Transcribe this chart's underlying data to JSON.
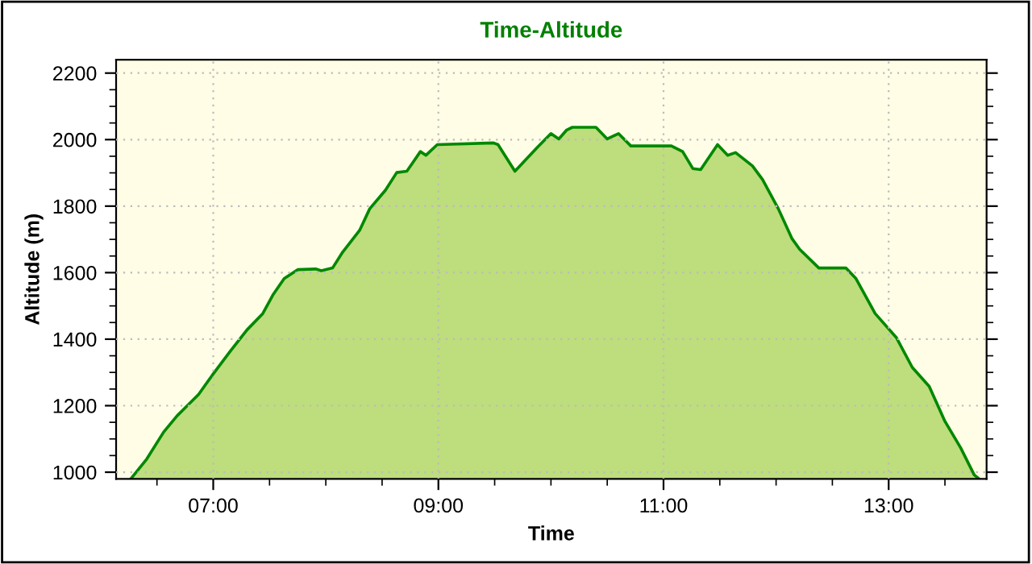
{
  "chart_data": {
    "type": "area",
    "title": "Time-Altitude",
    "xlabel": "Time",
    "ylabel": "Altitude (m)",
    "xlim": [
      6.137,
      13.87
    ],
    "ylim": [
      980,
      2240
    ],
    "xticks": [
      {
        "value": 6.5,
        "label": null
      },
      {
        "value": 7,
        "label": "07:00"
      },
      {
        "value": 7.5,
        "label": null
      },
      {
        "value": 8,
        "label": null
      },
      {
        "value": 8.5,
        "label": null
      },
      {
        "value": 9,
        "label": "09:00"
      },
      {
        "value": 9.5,
        "label": null
      },
      {
        "value": 10,
        "label": null
      },
      {
        "value": 10.5,
        "label": null
      },
      {
        "value": 11,
        "label": "11:00"
      },
      {
        "value": 11.5,
        "label": null
      },
      {
        "value": 12,
        "label": null
      },
      {
        "value": 12.5,
        "label": null
      },
      {
        "value": 13,
        "label": "13:00"
      },
      {
        "value": 13.5,
        "label": null
      }
    ],
    "yticks": [
      1000,
      {
        "value": 1050,
        "label": null
      },
      {
        "value": 1100,
        "label": null
      },
      {
        "value": 1150,
        "label": null
      },
      1200,
      {
        "value": 1250,
        "label": null
      },
      {
        "value": 1300,
        "label": null
      },
      {
        "value": 1350,
        "label": null
      },
      1400,
      {
        "value": 1450,
        "label": null
      },
      {
        "value": 1500,
        "label": null
      },
      {
        "value": 1550,
        "label": null
      },
      1600,
      {
        "value": 1650,
        "label": null
      },
      {
        "value": 1700,
        "label": null
      },
      {
        "value": 1750,
        "label": null
      },
      1800,
      {
        "value": 1850,
        "label": null
      },
      {
        "value": 1900,
        "label": null
      },
      {
        "value": 1950,
        "label": null
      },
      2000,
      {
        "value": 2050,
        "label": null
      },
      {
        "value": 2100,
        "label": null
      },
      {
        "value": 2150,
        "label": null
      },
      2200
    ],
    "grid": true,
    "legend": false,
    "marker": "none",
    "line_style": "solid",
    "series": [
      {
        "color": "#008800",
        "x": [
          6.27,
          6.41,
          6.56,
          6.68,
          6.87,
          6.99,
          7.15,
          7.3,
          7.44,
          7.53,
          7.63,
          7.75,
          7.91,
          7.96,
          8.06,
          8.15,
          8.3,
          8.39,
          8.53,
          8.63,
          8.72,
          8.84,
          8.89,
          8.99,
          9.49,
          9.53,
          9.68,
          9.88,
          10.0,
          10.07,
          10.14,
          10.19,
          10.4,
          10.5,
          10.6,
          10.71,
          11.07,
          11.17,
          11.26,
          11.33,
          11.48,
          11.57,
          11.64,
          11.79,
          11.88,
          12.02,
          12.14,
          12.21,
          12.38,
          12.62,
          12.71,
          12.88,
          13.07,
          13.21,
          13.36,
          13.5,
          13.64,
          13.76,
          13.8
        ],
        "values": [
          981,
          1040,
          1121,
          1170,
          1234,
          1291,
          1363,
          1428,
          1477,
          1533,
          1582,
          1609,
          1611,
          1606,
          1614,
          1662,
          1727,
          1792,
          1848,
          1901,
          1905,
          1964,
          1953,
          1985,
          1990,
          1985,
          1905,
          1977,
          2018,
          2002,
          2029,
          2037,
          2037,
          2002,
          2018,
          1981,
          1981,
          1964,
          1913,
          1910,
          1985,
          1953,
          1961,
          1921,
          1880,
          1792,
          1703,
          1670,
          1614,
          1614,
          1582,
          1477,
          1404,
          1315,
          1258,
          1153,
          1073,
          992,
          981
        ]
      }
    ]
  }
}
